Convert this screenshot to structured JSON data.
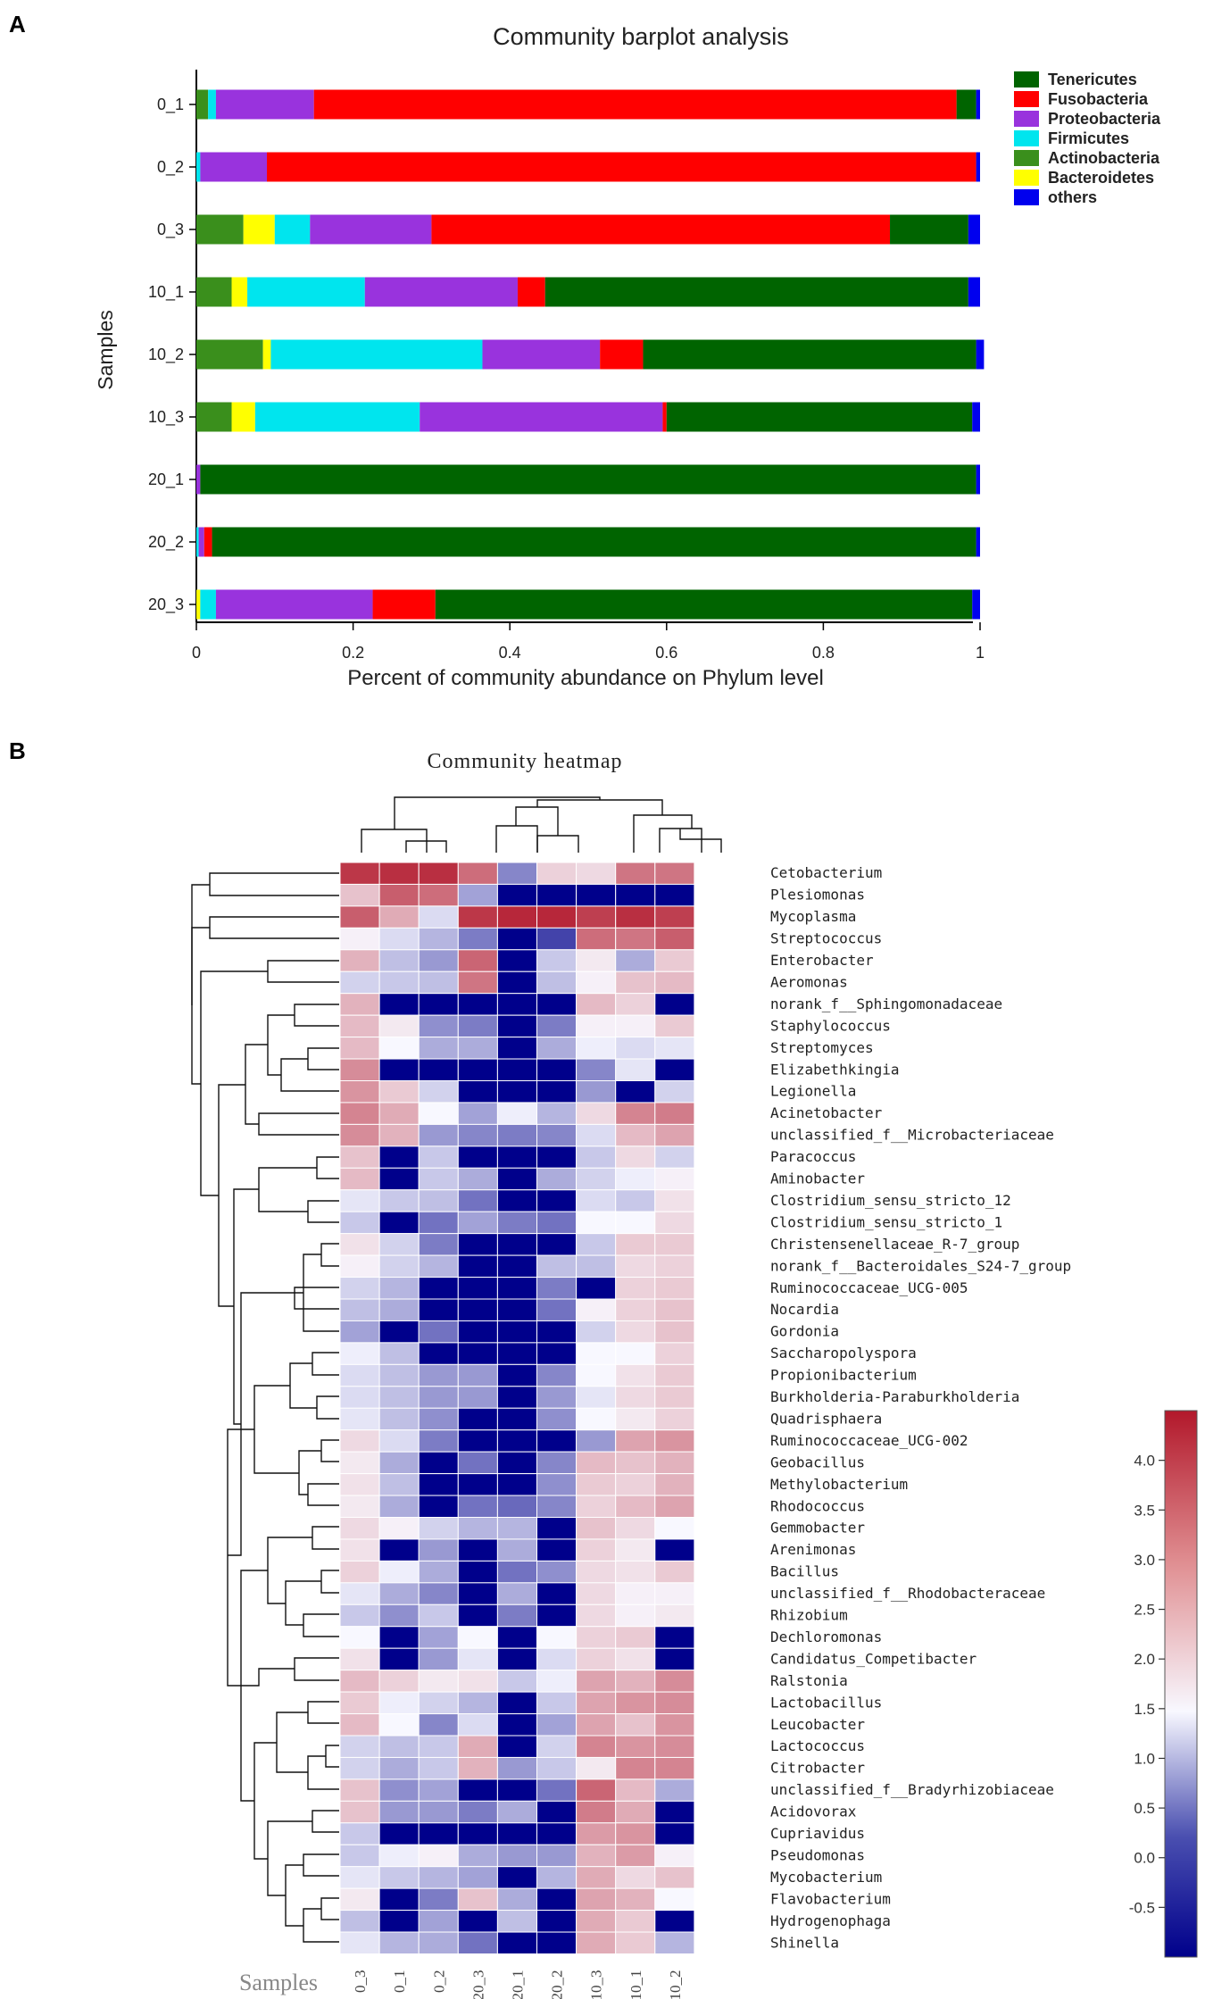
{
  "panel_labels": {
    "a": "A",
    "b": "B"
  },
  "colors": {
    "Tenericutes": "#006400",
    "Fusobacteria": "#ff0000",
    "Proteobacteria": "#9933dd",
    "Firmicutes": "#00e5ee",
    "Actinobacteria": "#3a8f1c",
    "Bacteroidetes": "#ffff00",
    "others": "#0000ee",
    "heat_low": "#00008b",
    "heat_mid": "#f8f8ff",
    "heat_high": "#b2182b"
  },
  "chart_data": [
    {
      "type": "bar",
      "orientation": "horizontal",
      "stacked": true,
      "title": "Community barplot analysis",
      "xlabel": "Percent of community abundance on Phylum level",
      "ylabel": "Samples",
      "xlim": [
        0,
        1
      ],
      "xticks": [
        "0",
        "0.2",
        "0.4",
        "0.6",
        "0.8",
        "1"
      ],
      "xtick_values": [
        0,
        0.2,
        0.4,
        0.6,
        0.8,
        1
      ],
      "legend_position": "top-right",
      "categories": [
        "0_1",
        "0_2",
        "0_3",
        "10_1",
        "10_2",
        "10_3",
        "20_1",
        "20_2",
        "20_3"
      ],
      "stack_order": [
        "Actinobacteria",
        "Bacteroidetes",
        "Firmicutes",
        "Proteobacteria",
        "Fusobacteria",
        "Tenericutes",
        "others"
      ],
      "series": [
        {
          "name": "Tenericutes",
          "values": [
            0.025,
            0.0,
            0.1,
            0.54,
            0.425,
            0.39,
            0.99,
            0.975,
            0.685
          ]
        },
        {
          "name": "Fusobacteria",
          "values": [
            0.82,
            0.905,
            0.585,
            0.035,
            0.055,
            0.005,
            0.0,
            0.01,
            0.08
          ]
        },
        {
          "name": "Proteobacteria",
          "values": [
            0.125,
            0.085,
            0.155,
            0.195,
            0.15,
            0.31,
            0.005,
            0.007,
            0.2
          ]
        },
        {
          "name": "Firmicutes",
          "values": [
            0.01,
            0.005,
            0.045,
            0.15,
            0.27,
            0.21,
            0.0,
            0.003,
            0.02
          ]
        },
        {
          "name": "Actinobacteria",
          "values": [
            0.015,
            0.0,
            0.06,
            0.045,
            0.085,
            0.045,
            0.0,
            0.0,
            0.0
          ]
        },
        {
          "name": "Bacteroidetes",
          "values": [
            0.0,
            0.0,
            0.04,
            0.02,
            0.01,
            0.03,
            0.0,
            0.0,
            0.005
          ]
        },
        {
          "name": "others",
          "values": [
            0.005,
            0.005,
            0.015,
            0.015,
            0.01,
            0.01,
            0.005,
            0.005,
            0.01
          ]
        }
      ],
      "legend": [
        "Tenericutes",
        "Fusobacteria",
        "Proteobacteria",
        "Firmicutes",
        "Actinobacteria",
        "Bacteroidetes",
        "others"
      ]
    },
    {
      "type": "heatmap",
      "title": "Community heatmap",
      "xlabel": "Samples",
      "columns": [
        "0_3",
        "0_1",
        "0_2",
        "20_3",
        "20_1",
        "20_2",
        "10_3",
        "10_1",
        "10_2"
      ],
      "colorbar": {
        "min": -1.0,
        "max": 4.5,
        "ticks": [
          4.0,
          3.5,
          3.0,
          2.5,
          2.0,
          1.5,
          1.0,
          0.5,
          0.0,
          -0.5
        ],
        "tick_labels": [
          "4.0",
          "3.5",
          "3.0",
          "2.5",
          "2.0",
          "1.5",
          "1.0",
          "0.5",
          "0.0",
          "-0.5"
        ]
      },
      "rows": [
        {
          "name": "Cetobacterium",
          "values": [
            4.1,
            4.2,
            4.2,
            3.4,
            0.4,
            2.1,
            2.0,
            3.3,
            3.3
          ]
        },
        {
          "name": "Plesiomonas",
          "values": [
            2.3,
            3.6,
            3.4,
            0.7,
            -1.0,
            -1.0,
            -1.0,
            -1.0,
            -1.0
          ]
        },
        {
          "name": "Mycoplasma",
          "values": [
            3.6,
            2.6,
            1.3,
            4.1,
            4.3,
            4.3,
            4.0,
            4.2,
            4.0
          ]
        },
        {
          "name": "Streptococcus",
          "values": [
            1.7,
            1.3,
            0.9,
            0.3,
            -1.0,
            -0.3,
            3.4,
            3.3,
            3.6
          ]
        },
        {
          "name": "Enterobacter",
          "values": [
            2.5,
            1.0,
            0.6,
            3.5,
            -1.0,
            1.1,
            1.8,
            0.8,
            2.2
          ]
        },
        {
          "name": "Aeromonas",
          "values": [
            1.2,
            1.1,
            1.0,
            3.3,
            -1.0,
            1.0,
            1.7,
            2.3,
            2.4
          ]
        },
        {
          "name": "norank_f__Sphingomonadaceae",
          "values": [
            2.5,
            -1.0,
            -1.0,
            -1.0,
            -1.0,
            -1.0,
            2.4,
            2.1,
            -1.0
          ]
        },
        {
          "name": "Staphylococcus",
          "values": [
            2.4,
            1.8,
            0.5,
            0.3,
            -1.0,
            0.3,
            1.7,
            1.7,
            2.2
          ]
        },
        {
          "name": "Streptomyces",
          "values": [
            2.4,
            1.6,
            0.8,
            0.8,
            -1.0,
            0.8,
            1.5,
            1.3,
            1.4
          ]
        },
        {
          "name": "Elizabethkingia",
          "values": [
            3.0,
            -1.0,
            -1.0,
            -1.0,
            -1.0,
            -1.0,
            0.4,
            1.4,
            -1.0
          ]
        },
        {
          "name": "Legionella",
          "values": [
            2.9,
            2.2,
            1.2,
            -1.0,
            -1.0,
            -1.0,
            0.6,
            -1.0,
            1.2
          ]
        },
        {
          "name": "Acinetobacter",
          "values": [
            3.1,
            2.6,
            1.6,
            0.7,
            1.5,
            0.9,
            2.0,
            3.1,
            3.2
          ]
        },
        {
          "name": "unclassified_f__Microbacteriaceae",
          "values": [
            3.0,
            2.5,
            0.6,
            0.4,
            0.3,
            0.4,
            1.3,
            2.4,
            2.7
          ]
        },
        {
          "name": "Paracoccus",
          "values": [
            2.3,
            -1.0,
            1.1,
            -1.0,
            -1.0,
            -1.0,
            1.1,
            2.0,
            1.2
          ]
        },
        {
          "name": "Aminobacter",
          "values": [
            2.4,
            -1.0,
            1.1,
            0.8,
            -1.0,
            0.8,
            1.2,
            1.5,
            1.7
          ]
        },
        {
          "name": "Clostridium_sensu_stricto_12",
          "values": [
            1.4,
            1.1,
            1.0,
            0.2,
            -1.0,
            -1.0,
            1.3,
            1.1,
            1.9
          ]
        },
        {
          "name": "Clostridium_sensu_stricto_1",
          "values": [
            1.1,
            -1.0,
            0.2,
            0.7,
            0.3,
            0.2,
            1.6,
            1.6,
            2.0
          ]
        },
        {
          "name": "Christensenellaceae_R-7_group",
          "values": [
            1.9,
            1.2,
            0.3,
            -1.0,
            -1.0,
            -1.0,
            1.1,
            2.2,
            2.2
          ]
        },
        {
          "name": "norank_f__Bacteroidales_S24-7_group",
          "values": [
            1.7,
            1.2,
            0.9,
            -1.0,
            -1.0,
            1.0,
            1.0,
            2.0,
            2.1
          ]
        },
        {
          "name": "Ruminococcaceae_UCG-005",
          "values": [
            1.2,
            0.9,
            -1.0,
            -1.0,
            -1.0,
            0.3,
            -1.0,
            2.1,
            2.2
          ]
        },
        {
          "name": "Nocardia",
          "values": [
            1.0,
            0.8,
            -1.0,
            -1.0,
            -1.0,
            0.2,
            1.7,
            2.1,
            2.3
          ]
        },
        {
          "name": "Gordonia",
          "values": [
            0.7,
            -1.0,
            0.2,
            -1.0,
            -1.0,
            -1.0,
            1.2,
            2.0,
            2.3
          ]
        },
        {
          "name": "Saccharopolyspora",
          "values": [
            1.5,
            1.0,
            -1.0,
            -1.0,
            -1.0,
            -1.0,
            1.6,
            1.6,
            2.1
          ]
        },
        {
          "name": "Propionibacterium",
          "values": [
            1.3,
            1.0,
            0.6,
            0.6,
            -1.0,
            0.4,
            1.6,
            1.9,
            2.2
          ]
        },
        {
          "name": "Burkholderia-Paraburkholderia",
          "values": [
            1.3,
            1.0,
            0.6,
            0.6,
            -1.0,
            0.6,
            1.4,
            2.0,
            2.2
          ]
        },
        {
          "name": "Quadrisphaera",
          "values": [
            1.4,
            1.0,
            0.5,
            -1.0,
            -1.0,
            0.5,
            1.6,
            1.8,
            2.1
          ]
        },
        {
          "name": "Ruminococcaceae_UCG-002",
          "values": [
            2.0,
            1.3,
            0.3,
            -1.0,
            -1.0,
            -1.0,
            0.6,
            2.7,
            2.9
          ]
        },
        {
          "name": "Geobacillus",
          "values": [
            1.8,
            0.8,
            -1.0,
            0.2,
            -1.0,
            0.4,
            2.4,
            2.3,
            2.5
          ]
        },
        {
          "name": "Methylobacterium",
          "values": [
            1.9,
            1.0,
            -1.0,
            -1.0,
            -1.0,
            0.5,
            2.2,
            2.1,
            2.5
          ]
        },
        {
          "name": "Rhodococcus",
          "values": [
            1.8,
            0.8,
            -1.0,
            0.2,
            0.1,
            0.4,
            2.1,
            2.4,
            2.7
          ]
        },
        {
          "name": "Gemmobacter",
          "values": [
            2.0,
            1.7,
            1.2,
            0.9,
            0.9,
            -1.0,
            2.3,
            2.0,
            1.6
          ]
        },
        {
          "name": "Arenimonas",
          "values": [
            1.9,
            -1.0,
            0.6,
            -1.0,
            0.8,
            -1.0,
            2.1,
            1.8,
            -1.0
          ]
        },
        {
          "name": "Bacillus",
          "values": [
            2.1,
            1.5,
            0.8,
            -1.0,
            0.2,
            0.5,
            2.0,
            1.9,
            2.2
          ]
        },
        {
          "name": "unclassified_f__Rhodobacteraceae",
          "values": [
            1.4,
            0.8,
            0.4,
            -1.0,
            0.8,
            -1.0,
            2.0,
            1.7,
            1.7
          ]
        },
        {
          "name": "Rhizobium",
          "values": [
            1.1,
            0.5,
            1.1,
            -1.0,
            0.3,
            -1.0,
            2.0,
            1.7,
            1.8
          ]
        },
        {
          "name": "Dechloromonas",
          "values": [
            1.6,
            -1.0,
            0.7,
            1.6,
            -1.0,
            1.6,
            2.1,
            2.2,
            -1.0
          ]
        },
        {
          "name": "Candidatus_Competibacter",
          "values": [
            1.9,
            -1.0,
            0.6,
            1.4,
            -1.0,
            1.3,
            2.1,
            1.9,
            -1.0
          ]
        },
        {
          "name": "Ralstonia",
          "values": [
            2.4,
            2.1,
            1.8,
            1.9,
            1.1,
            1.5,
            2.7,
            2.5,
            3.0
          ]
        },
        {
          "name": "Lactobacillus",
          "values": [
            2.2,
            1.5,
            1.2,
            0.9,
            -1.0,
            1.1,
            2.7,
            2.9,
            3.0
          ]
        },
        {
          "name": "Leucobacter",
          "values": [
            2.4,
            1.6,
            0.4,
            1.3,
            -1.0,
            0.7,
            2.7,
            2.3,
            2.9
          ]
        },
        {
          "name": "Lactococcus",
          "values": [
            1.2,
            1.0,
            1.1,
            2.6,
            -1.0,
            1.2,
            3.1,
            2.9,
            3.0
          ]
        },
        {
          "name": "Citrobacter",
          "values": [
            1.2,
            0.8,
            1.1,
            2.5,
            0.6,
            1.1,
            1.8,
            3.1,
            3.1
          ]
        },
        {
          "name": "unclassified_f__Bradyrhizobiaceae",
          "values": [
            2.3,
            0.5,
            0.7,
            -1.0,
            -1.0,
            0.2,
            3.5,
            2.4,
            0.8
          ]
        },
        {
          "name": "Acidovorax",
          "values": [
            2.3,
            0.6,
            0.6,
            0.3,
            0.8,
            -1.0,
            3.2,
            2.6,
            -1.0
          ]
        },
        {
          "name": "Cupriavidus",
          "values": [
            1.1,
            -1.0,
            -1.0,
            -1.0,
            -1.0,
            -1.0,
            2.8,
            2.9,
            -1.0
          ]
        },
        {
          "name": "Pseudomonas",
          "values": [
            1.1,
            1.5,
            1.7,
            0.8,
            0.6,
            0.6,
            2.5,
            2.8,
            1.7
          ]
        },
        {
          "name": "Mycobacterium",
          "values": [
            1.4,
            1.1,
            0.9,
            0.7,
            -1.0,
            0.9,
            2.6,
            2.0,
            2.3
          ]
        },
        {
          "name": "Flavobacterium",
          "values": [
            1.8,
            -1.0,
            0.3,
            2.3,
            0.8,
            -1.0,
            2.7,
            2.5,
            1.6
          ]
        },
        {
          "name": "Hydrogenophaga",
          "values": [
            1.0,
            -1.0,
            0.7,
            -1.0,
            1.0,
            -1.0,
            2.6,
            2.2,
            -1.0
          ]
        },
        {
          "name": "Shinella",
          "values": [
            1.4,
            0.9,
            0.8,
            0.2,
            -1.0,
            -1.0,
            2.6,
            2.2,
            0.9
          ]
        }
      ]
    }
  ]
}
